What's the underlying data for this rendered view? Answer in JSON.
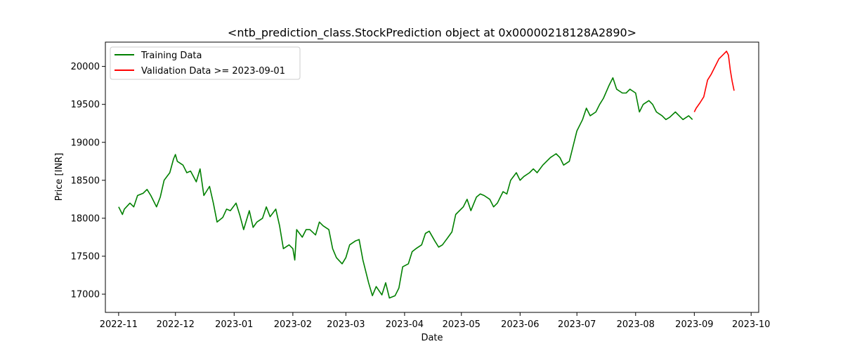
{
  "chart_data": {
    "type": "line",
    "title": "<ntb_prediction_class.StockPrediction object at 0x00000218128A2890>",
    "xlabel": "Date",
    "ylabel": "Price [INR]",
    "xlim": [
      "2022-10-25",
      "2023-10-05"
    ],
    "ylim": [
      16760,
      20320
    ],
    "x_ticks": [
      "2022-11-01",
      "2022-12-01",
      "2023-01-01",
      "2023-02-01",
      "2023-03-01",
      "2023-04-01",
      "2023-05-01",
      "2023-06-01",
      "2023-07-01",
      "2023-08-01",
      "2023-09-01",
      "2023-10-01"
    ],
    "x_tick_labels": [
      "2022-11",
      "2022-12",
      "2023-01",
      "2023-02",
      "2023-03",
      "2023-04",
      "2023-05",
      "2023-06",
      "2023-07",
      "2023-08",
      "2023-09",
      "2023-10"
    ],
    "y_ticks": [
      17000,
      17500,
      18000,
      18500,
      19000,
      19500,
      20000
    ],
    "grid": false,
    "legend_position": "top-left",
    "series": [
      {
        "name": "Training Data",
        "color": "#008000",
        "points": [
          [
            "2022-11-01",
            18150
          ],
          [
            "2022-11-03",
            18050
          ],
          [
            "2022-11-04",
            18120
          ],
          [
            "2022-11-07",
            18200
          ],
          [
            "2022-11-09",
            18150
          ],
          [
            "2022-11-11",
            18300
          ],
          [
            "2022-11-14",
            18330
          ],
          [
            "2022-11-16",
            18380
          ],
          [
            "2022-11-18",
            18300
          ],
          [
            "2022-11-21",
            18150
          ],
          [
            "2022-11-23",
            18280
          ],
          [
            "2022-11-25",
            18500
          ],
          [
            "2022-11-28",
            18600
          ],
          [
            "2022-11-30",
            18780
          ],
          [
            "2022-12-01",
            18840
          ],
          [
            "2022-12-02",
            18750
          ],
          [
            "2022-12-05",
            18700
          ],
          [
            "2022-12-07",
            18600
          ],
          [
            "2022-12-09",
            18620
          ],
          [
            "2022-12-12",
            18480
          ],
          [
            "2022-12-14",
            18650
          ],
          [
            "2022-12-16",
            18300
          ],
          [
            "2022-12-19",
            18420
          ],
          [
            "2022-12-21",
            18200
          ],
          [
            "2022-12-23",
            17950
          ],
          [
            "2022-12-26",
            18010
          ],
          [
            "2022-12-28",
            18120
          ],
          [
            "2022-12-30",
            18100
          ],
          [
            "2023-01-02",
            18200
          ],
          [
            "2023-01-04",
            18040
          ],
          [
            "2023-01-06",
            17850
          ],
          [
            "2023-01-09",
            18100
          ],
          [
            "2023-01-11",
            17880
          ],
          [
            "2023-01-13",
            17950
          ],
          [
            "2023-01-16",
            18000
          ],
          [
            "2023-01-18",
            18150
          ],
          [
            "2023-01-20",
            18020
          ],
          [
            "2023-01-23",
            18120
          ],
          [
            "2023-01-25",
            17900
          ],
          [
            "2023-01-27",
            17600
          ],
          [
            "2023-01-30",
            17650
          ],
          [
            "2023-02-01",
            17600
          ],
          [
            "2023-02-02",
            17450
          ],
          [
            "2023-02-03",
            17850
          ],
          [
            "2023-02-06",
            17750
          ],
          [
            "2023-02-08",
            17850
          ],
          [
            "2023-02-10",
            17850
          ],
          [
            "2023-02-13",
            17780
          ],
          [
            "2023-02-15",
            17950
          ],
          [
            "2023-02-17",
            17900
          ],
          [
            "2023-02-20",
            17850
          ],
          [
            "2023-02-22",
            17600
          ],
          [
            "2023-02-24",
            17480
          ],
          [
            "2023-02-27",
            17400
          ],
          [
            "2023-03-01",
            17480
          ],
          [
            "2023-03-03",
            17650
          ],
          [
            "2023-03-06",
            17700
          ],
          [
            "2023-03-08",
            17720
          ],
          [
            "2023-03-10",
            17450
          ],
          [
            "2023-03-13",
            17150
          ],
          [
            "2023-03-15",
            16980
          ],
          [
            "2023-03-17",
            17100
          ],
          [
            "2023-03-20",
            16990
          ],
          [
            "2023-03-22",
            17150
          ],
          [
            "2023-03-24",
            16950
          ],
          [
            "2023-03-27",
            16980
          ],
          [
            "2023-03-29",
            17080
          ],
          [
            "2023-03-31",
            17360
          ],
          [
            "2023-04-03",
            17400
          ],
          [
            "2023-04-05",
            17560
          ],
          [
            "2023-04-07",
            17600
          ],
          [
            "2023-04-10",
            17650
          ],
          [
            "2023-04-12",
            17800
          ],
          [
            "2023-04-14",
            17830
          ],
          [
            "2023-04-17",
            17700
          ],
          [
            "2023-04-19",
            17620
          ],
          [
            "2023-04-21",
            17650
          ],
          [
            "2023-04-24",
            17750
          ],
          [
            "2023-04-26",
            17820
          ],
          [
            "2023-04-28",
            18050
          ],
          [
            "2023-05-02",
            18150
          ],
          [
            "2023-05-04",
            18250
          ],
          [
            "2023-05-06",
            18100
          ],
          [
            "2023-05-09",
            18280
          ],
          [
            "2023-05-11",
            18320
          ],
          [
            "2023-05-13",
            18300
          ],
          [
            "2023-05-16",
            18250
          ],
          [
            "2023-05-18",
            18150
          ],
          [
            "2023-05-20",
            18200
          ],
          [
            "2023-05-23",
            18350
          ],
          [
            "2023-05-25",
            18320
          ],
          [
            "2023-05-27",
            18500
          ],
          [
            "2023-05-30",
            18600
          ],
          [
            "2023-06-01",
            18500
          ],
          [
            "2023-06-03",
            18550
          ],
          [
            "2023-06-06",
            18600
          ],
          [
            "2023-06-08",
            18650
          ],
          [
            "2023-06-10",
            18600
          ],
          [
            "2023-06-13",
            18700
          ],
          [
            "2023-06-15",
            18750
          ],
          [
            "2023-06-17",
            18800
          ],
          [
            "2023-06-20",
            18850
          ],
          [
            "2023-06-22",
            18800
          ],
          [
            "2023-06-24",
            18700
          ],
          [
            "2023-06-27",
            18750
          ],
          [
            "2023-06-29",
            18950
          ],
          [
            "2023-07-01",
            19150
          ],
          [
            "2023-07-04",
            19300
          ],
          [
            "2023-07-06",
            19450
          ],
          [
            "2023-07-08",
            19350
          ],
          [
            "2023-07-11",
            19400
          ],
          [
            "2023-07-13",
            19500
          ],
          [
            "2023-07-15",
            19580
          ],
          [
            "2023-07-18",
            19750
          ],
          [
            "2023-07-20",
            19850
          ],
          [
            "2023-07-22",
            19700
          ],
          [
            "2023-07-25",
            19650
          ],
          [
            "2023-07-27",
            19650
          ],
          [
            "2023-07-29",
            19700
          ],
          [
            "2023-08-01",
            19650
          ],
          [
            "2023-08-03",
            19400
          ],
          [
            "2023-08-05",
            19500
          ],
          [
            "2023-08-08",
            19550
          ],
          [
            "2023-08-10",
            19500
          ],
          [
            "2023-08-12",
            19400
          ],
          [
            "2023-08-15",
            19350
          ],
          [
            "2023-08-17",
            19300
          ],
          [
            "2023-08-19",
            19330
          ],
          [
            "2023-08-22",
            19400
          ],
          [
            "2023-08-24",
            19350
          ],
          [
            "2023-08-26",
            19300
          ],
          [
            "2023-08-29",
            19350
          ],
          [
            "2023-08-31",
            19300
          ]
        ]
      },
      {
        "name": "Validation Data >= 2023-09-01",
        "color": "#ff0000",
        "points": [
          [
            "2023-09-01",
            19400
          ],
          [
            "2023-09-02",
            19450
          ],
          [
            "2023-09-04",
            19520
          ],
          [
            "2023-09-06",
            19600
          ],
          [
            "2023-09-08",
            19820
          ],
          [
            "2023-09-10",
            19900
          ],
          [
            "2023-09-12",
            20000
          ],
          [
            "2023-09-14",
            20100
          ],
          [
            "2023-09-16",
            20150
          ],
          [
            "2023-09-18",
            20200
          ],
          [
            "2023-09-19",
            20150
          ],
          [
            "2023-09-20",
            19950
          ],
          [
            "2023-09-21",
            19800
          ],
          [
            "2023-09-22",
            19680
          ]
        ]
      }
    ]
  }
}
